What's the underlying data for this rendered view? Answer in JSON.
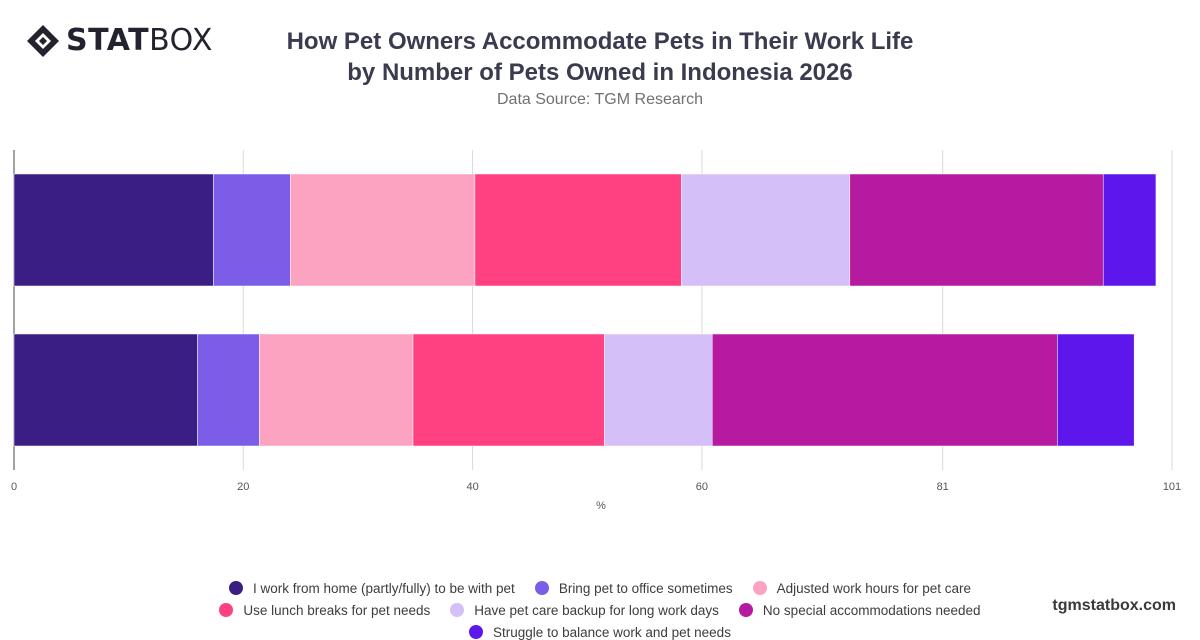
{
  "brand": {
    "logo_bold": "STAT",
    "logo_light": "BOX",
    "watermark": "tgmstatbox.com"
  },
  "header": {
    "title_line1": "How Pet Owners Accommodate Pets in Their Work Life",
    "title_line2": "by Number of Pets Owned in Indonesia 2026",
    "subtitle": "Data Source: TGM Research"
  },
  "chart_data": {
    "type": "bar",
    "orientation": "horizontal",
    "stacked": true,
    "categories": [
      "",
      ""
    ],
    "xlabel": "%",
    "ylabel": "",
    "xlim": [
      0,
      101
    ],
    "x_ticks": [
      0,
      20,
      40,
      60,
      81,
      101
    ],
    "grid": true,
    "legend_position": "bottom",
    "series": [
      {
        "name": "I work from home (partly/fully) to be with pet",
        "color": "#3a1e84",
        "values": [
          17.4,
          16.0
        ]
      },
      {
        "name": "Bring pet to office sometimes",
        "color": "#7b5de8",
        "values": [
          6.7,
          5.4
        ]
      },
      {
        "name": "Adjusted work hours for pet care",
        "color": "#fba3c1",
        "values": [
          16.1,
          13.4
        ]
      },
      {
        "name": "Use lunch breaks for pet needs",
        "color": "#ff4081",
        "values": [
          18.0,
          16.7
        ]
      },
      {
        "name": "Have pet care backup for long work days",
        "color": "#d4bff9",
        "values": [
          14.7,
          9.4
        ]
      },
      {
        "name": "No special accommodations needed",
        "color": "#b51aa0",
        "values": [
          22.1,
          30.1
        ]
      },
      {
        "name": "Struggle to balance work and pet needs",
        "color": "#5e17eb",
        "values": [
          4.6,
          6.7
        ]
      }
    ]
  }
}
